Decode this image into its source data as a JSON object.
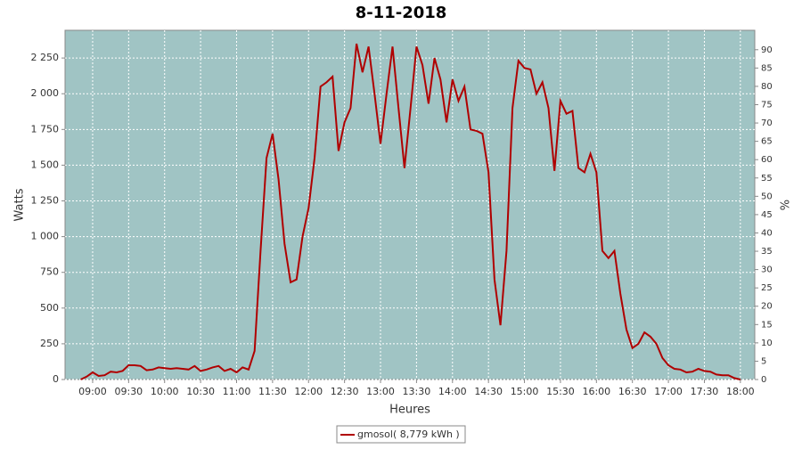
{
  "chart_data": {
    "type": "line",
    "title": "8-11-2018",
    "x_label": "Heures",
    "y_label": "Watts",
    "y2_label": "%",
    "x": [
      "08:50",
      "08:55",
      "09:00",
      "09:05",
      "09:10",
      "09:15",
      "09:20",
      "09:25",
      "09:30",
      "09:35",
      "09:40",
      "09:45",
      "09:50",
      "09:55",
      "10:00",
      "10:05",
      "10:10",
      "10:15",
      "10:20",
      "10:25",
      "10:30",
      "10:35",
      "10:40",
      "10:45",
      "10:50",
      "10:55",
      "11:00",
      "11:05",
      "11:10",
      "11:15",
      "11:20",
      "11:25",
      "11:30",
      "11:35",
      "11:40",
      "11:45",
      "11:50",
      "11:55",
      "12:00",
      "12:05",
      "12:10",
      "12:15",
      "12:20",
      "12:25",
      "12:30",
      "12:35",
      "12:40",
      "12:45",
      "12:50",
      "12:55",
      "13:00",
      "13:05",
      "13:10",
      "13:15",
      "13:20",
      "13:25",
      "13:30",
      "13:35",
      "13:40",
      "13:45",
      "13:50",
      "13:55",
      "14:00",
      "14:05",
      "14:10",
      "14:15",
      "14:20",
      "14:25",
      "14:30",
      "14:35",
      "14:40",
      "14:45",
      "14:50",
      "14:55",
      "15:00",
      "15:05",
      "15:10",
      "15:15",
      "15:20",
      "15:25",
      "15:30",
      "15:35",
      "15:40",
      "15:45",
      "15:50",
      "15:55",
      "16:00",
      "16:05",
      "16:10",
      "16:15",
      "16:20",
      "16:25",
      "16:30",
      "16:35",
      "16:40",
      "16:45",
      "16:50",
      "16:55",
      "17:00",
      "17:05",
      "17:10",
      "17:15",
      "17:20",
      "17:25",
      "17:30",
      "17:35",
      "17:40",
      "17:45",
      "17:50",
      "17:55",
      "18:00"
    ],
    "series": [
      {
        "name": "gmosol( 8,779 kWh )",
        "color": "#b00000",
        "values": [
          0,
          20,
          50,
          25,
          30,
          55,
          50,
          60,
          100,
          100,
          95,
          65,
          70,
          85,
          80,
          75,
          80,
          75,
          70,
          95,
          60,
          70,
          85,
          95,
          60,
          75,
          50,
          85,
          70,
          200,
          900,
          1550,
          1720,
          1400,
          950,
          680,
          700,
          1000,
          1200,
          1550,
          2050,
          2080,
          2120,
          1600,
          1800,
          1900,
          2350,
          2150,
          2330,
          2000,
          1650,
          2000,
          2330,
          1900,
          1480,
          1900,
          2330,
          2200,
          1930,
          2250,
          2100,
          1800,
          2100,
          1950,
          2050,
          1750,
          1740,
          1720,
          1450,
          700,
          380,
          900,
          1900,
          2230,
          2180,
          2170,
          2000,
          2080,
          1900,
          1460,
          1950,
          1860,
          1880,
          1480,
          1450,
          1580,
          1450,
          900,
          850,
          900,
          600,
          350,
          220,
          250,
          330,
          300,
          250,
          150,
          100,
          75,
          70,
          50,
          55,
          75,
          60,
          55,
          35,
          30,
          30,
          10,
          0
        ]
      }
    ],
    "xlim": [
      "08:37",
      "18:12"
    ],
    "xticks": [
      "09:00",
      "09:30",
      "10:00",
      "10:30",
      "11:00",
      "11:30",
      "12:00",
      "12:30",
      "13:00",
      "13:30",
      "14:00",
      "14:30",
      "15:00",
      "15:30",
      "16:00",
      "16:30",
      "17:00",
      "17:30",
      "18:00"
    ],
    "ylim": [
      0,
      2444
    ],
    "yticks": [
      0,
      250,
      500,
      750,
      {
        "value": 1000,
        "label": "1 000"
      },
      {
        "value": 1250,
        "label": "1 250"
      },
      {
        "value": 1500,
        "label": "1 500"
      },
      {
        "value": 1750,
        "label": "1 750"
      },
      {
        "value": 2000,
        "label": "2 000"
      },
      {
        "value": 2250,
        "label": "2 250"
      }
    ],
    "y2lim": [
      0,
      95.3
    ],
    "y2ticks": [
      0,
      5,
      10,
      15,
      20,
      25,
      30,
      35,
      40,
      45,
      50,
      55,
      60,
      65,
      70,
      75,
      80,
      85,
      90
    ],
    "grid": true,
    "plot_background": "#a0c4c4",
    "legend": "bottom"
  }
}
